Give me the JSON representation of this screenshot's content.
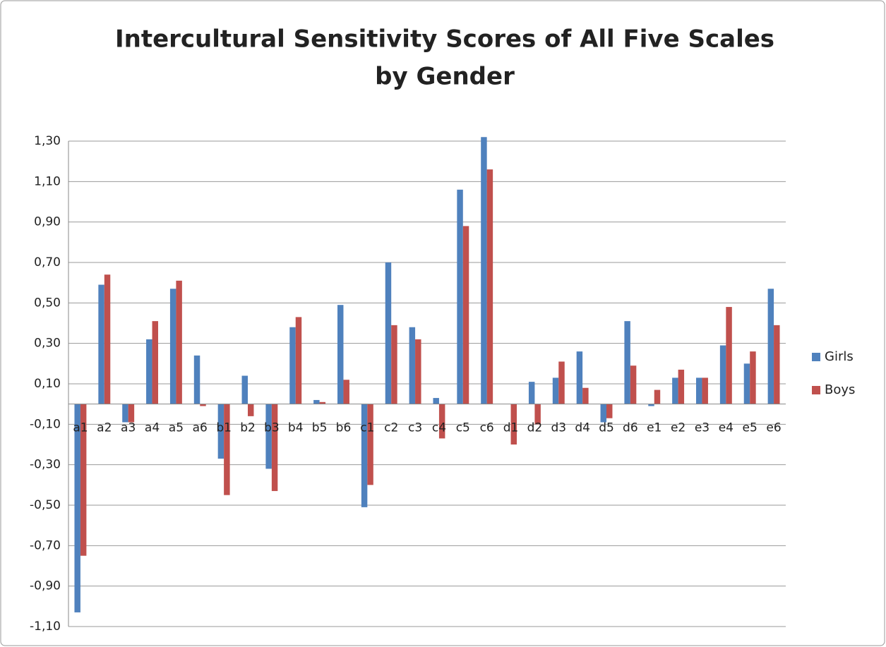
{
  "chart_data": {
    "type": "bar",
    "title": [
      "Intercultural Sensitivity Scores of All Five Scales",
      "by Gender"
    ],
    "categories": [
      "a1",
      "a2",
      "a3",
      "a4",
      "a5",
      "a6",
      "b1",
      "b2",
      "b3",
      "b4",
      "b5",
      "b6",
      "c1",
      "c2",
      "c3",
      "c4",
      "c5",
      "c6",
      "d1",
      "d2",
      "d3",
      "d4",
      "d5",
      "d6",
      "e1",
      "e2",
      "e3",
      "e4",
      "e5",
      "e6"
    ],
    "series": [
      {
        "name": "Girls",
        "color": "#4f81bd",
        "values": [
          -1.03,
          0.59,
          -0.09,
          0.32,
          0.57,
          0.24,
          -0.27,
          0.14,
          -0.32,
          0.38,
          0.02,
          0.49,
          -0.51,
          0.7,
          0.38,
          0.03,
          1.06,
          1.32,
          0,
          0.11,
          0.13,
          0.26,
          -0.09,
          0.41,
          -0.01,
          0.13,
          0.13,
          0.29,
          0.2,
          0.57
        ]
      },
      {
        "name": "Boys",
        "color": "#c0504d",
        "values": [
          -0.75,
          0.64,
          -0.09,
          0.41,
          0.61,
          -0.01,
          -0.45,
          -0.06,
          -0.43,
          0.43,
          0.01,
          0.12,
          -0.4,
          0.39,
          0.32,
          -0.17,
          0.88,
          1.16,
          -0.2,
          -0.1,
          0.21,
          0.08,
          -0.07,
          0.19,
          0.07,
          0.17,
          0.13,
          0.48,
          0.26,
          0.39
        ]
      }
    ],
    "ylim": [
      -1.1,
      1.3
    ],
    "yticks": [
      {
        "value": 1.3,
        "label": "1,30"
      },
      {
        "value": 1.1,
        "label": "1,10"
      },
      {
        "value": 0.9,
        "label": "0,90"
      },
      {
        "value": 0.7,
        "label": "0,70"
      },
      {
        "value": 0.5,
        "label": "0,50"
      },
      {
        "value": 0.3,
        "label": "0,30"
      },
      {
        "value": 0.1,
        "label": "0,10"
      },
      {
        "value": -0.1,
        "label": "-0,10"
      },
      {
        "value": -0.3,
        "label": "-0,30"
      },
      {
        "value": -0.5,
        "label": "-0,50"
      },
      {
        "value": -0.7,
        "label": "-0,70"
      },
      {
        "value": -0.9,
        "label": "-0,90"
      },
      {
        "value": -1.1,
        "label": "-1,10"
      }
    ],
    "grid": true,
    "legend": "right"
  }
}
